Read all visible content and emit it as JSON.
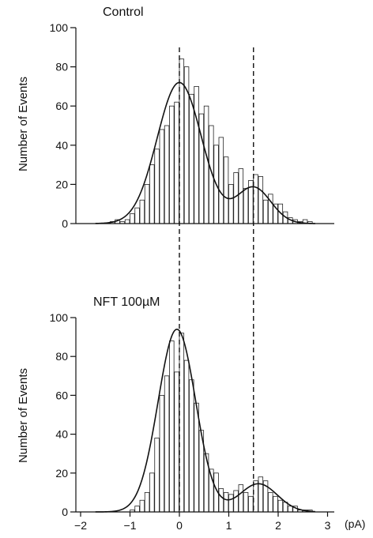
{
  "chart_data": [
    {
      "type": "bar",
      "title": "Control",
      "ylabel": "Number of Events",
      "xlabel": "",
      "xlim": [
        -2.1,
        3.0
      ],
      "ylim": [
        0,
        100
      ],
      "yticks": [
        "0",
        "20",
        "40",
        "60",
        "80",
        "100"
      ],
      "bin_width": 0.1,
      "bin_centers": [
        -1.35,
        -1.25,
        -1.15,
        -1.05,
        -0.95,
        -0.85,
        -0.75,
        -0.65,
        -0.55,
        -0.45,
        -0.35,
        -0.25,
        -0.15,
        -0.05,
        0.05,
        0.15,
        0.25,
        0.35,
        0.45,
        0.55,
        0.65,
        0.75,
        0.85,
        0.95,
        1.05,
        1.15,
        1.25,
        1.35,
        1.45,
        1.55,
        1.65,
        1.75,
        1.85,
        1.95,
        2.05,
        2.15,
        2.25,
        2.35,
        2.45,
        2.55,
        2.65
      ],
      "values": [
        1,
        2,
        1,
        2,
        5,
        8,
        12,
        20,
        30,
        38,
        48,
        50,
        60,
        62,
        84,
        80,
        66,
        70,
        56,
        60,
        50,
        40,
        44,
        34,
        20,
        26,
        28,
        18,
        22,
        25,
        24,
        12,
        15,
        10,
        10,
        6,
        3,
        2,
        1,
        2,
        1
      ],
      "fit_peaks": [
        {
          "mean": 0.0,
          "height": 72,
          "sd": 0.45
        },
        {
          "mean": 1.5,
          "height": 18.5,
          "sd": 0.35
        }
      ],
      "dashed_lines_x": [
        0.0,
        1.5
      ]
    },
    {
      "type": "bar",
      "title": "NFT 100µM",
      "ylabel": "Number of Events",
      "xlabel": "(pA)",
      "xlim": [
        -2.1,
        3.0
      ],
      "ylim": [
        0,
        100
      ],
      "xticks": [
        "−2",
        "−1",
        "0",
        "1",
        "2",
        "3"
      ],
      "yticks": [
        "0",
        "20",
        "40",
        "60",
        "80",
        "100"
      ],
      "bin_width": 0.1,
      "bin_centers": [
        -0.95,
        -0.85,
        -0.75,
        -0.65,
        -0.55,
        -0.45,
        -0.35,
        -0.25,
        -0.15,
        -0.05,
        0.05,
        0.15,
        0.25,
        0.35,
        0.45,
        0.55,
        0.65,
        0.75,
        0.85,
        0.95,
        1.05,
        1.15,
        1.25,
        1.35,
        1.45,
        1.55,
        1.65,
        1.75,
        1.85,
        1.95,
        2.05,
        2.15,
        2.25,
        2.35,
        2.45,
        2.55,
        2.65
      ],
      "values": [
        1,
        3,
        6,
        10,
        20,
        38,
        60,
        70,
        88,
        72,
        92,
        78,
        68,
        56,
        42,
        30,
        22,
        20,
        12,
        10,
        9,
        11,
        14,
        10,
        8,
        16,
        18,
        16,
        10,
        8,
        6,
        5,
        3,
        3,
        1,
        1,
        1
      ],
      "fit_peaks": [
        {
          "mean": -0.05,
          "height": 94,
          "sd": 0.38
        },
        {
          "mean": 1.6,
          "height": 14.5,
          "sd": 0.38
        }
      ],
      "dashed_lines_x": [
        0.0,
        1.5
      ]
    }
  ]
}
